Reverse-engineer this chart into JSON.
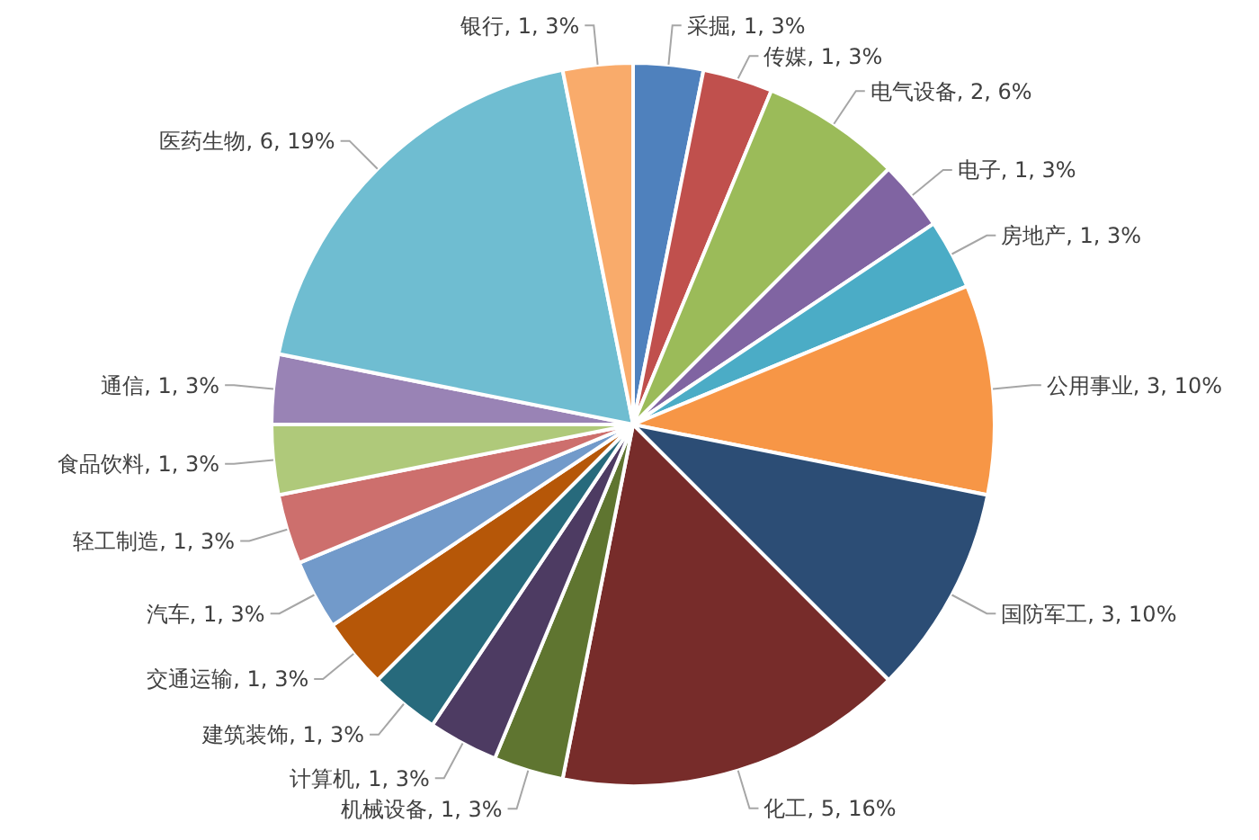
{
  "chart_data": {
    "type": "pie",
    "categories": [
      "采掘",
      "传媒",
      "电气设备",
      "电子",
      "房地产",
      "公用事业",
      "国防军工",
      "化工",
      "机械设备",
      "计算机",
      "建筑装饰",
      "交通运输",
      "汽车",
      "轻工制造",
      "食品饮料",
      "通信",
      "医药生物",
      "银行"
    ],
    "values": [
      1,
      1,
      2,
      1,
      1,
      3,
      3,
      5,
      1,
      1,
      1,
      1,
      1,
      1,
      1,
      1,
      6,
      1
    ],
    "value_labels": [
      "1, 3%",
      "1, 3%",
      "2, 6%",
      "1, 3%",
      "1, 3%",
      "3, 10%",
      "3, 10%",
      "5, 16%",
      "1, 3%",
      "1, 3%",
      "1, 3%",
      "1, 3%",
      "1, 3%",
      "1, 3%",
      "1, 3%",
      "1, 3%",
      "6, 19%",
      "1, 3%"
    ],
    "colors": [
      "#4f81bd",
      "#c0504d",
      "#9bbb59",
      "#8064a2",
      "#4bacc6",
      "#f79646",
      "#2c4d75",
      "#772c2a",
      "#5f7530",
      "#4d3b62",
      "#276a7c",
      "#b65708",
      "#729aca",
      "#cd6f6d",
      "#afc97a",
      "#9983b5",
      "#6fbdd1",
      "#f9ab6b"
    ]
  }
}
